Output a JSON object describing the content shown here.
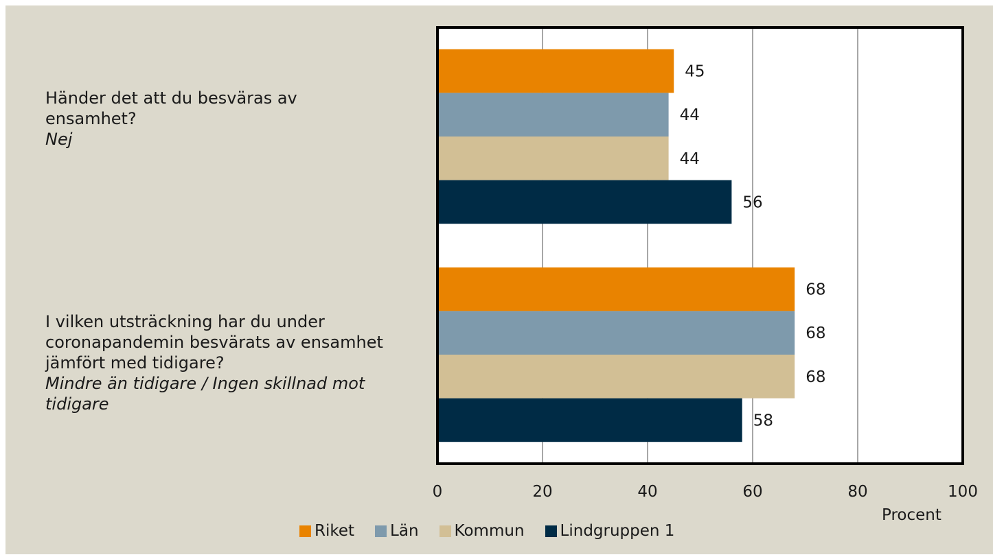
{
  "chart_data": {
    "type": "bar",
    "orientation": "horizontal",
    "categories": [
      {
        "question": "Händer det att du besväras av ensamhet?",
        "answer": "Nej"
      },
      {
        "question": "I vilken utsträckning har du under coronapandemin besvärats av ensamhet jämfört med tidigare?",
        "answer": "Mindre än tidigare / Ingen skillnad mot tidigare"
      }
    ],
    "series": [
      {
        "name": "Riket",
        "color": "#e98300",
        "values": [
          45,
          68
        ]
      },
      {
        "name": "Län",
        "color": "#7e9aac",
        "values": [
          44,
          68
        ]
      },
      {
        "name": "Kommun",
        "color": "#d2bf95",
        "values": [
          44,
          68
        ]
      },
      {
        "name": "Lindgruppen 1",
        "color": "#002b45",
        "values": [
          56,
          58
        ]
      }
    ],
    "xlim": [
      0,
      100
    ],
    "xticks": [
      0,
      20,
      40,
      60,
      80,
      100
    ],
    "xlabel": "Procent",
    "grid": true,
    "legend_position": "bottom"
  }
}
